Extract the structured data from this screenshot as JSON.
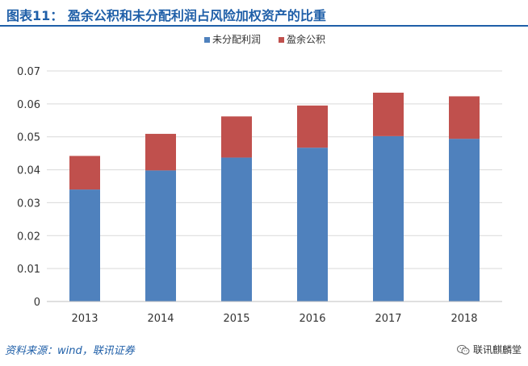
{
  "header": {
    "title": "图表11： 盈余公积和未分配利润占风险加权资产的比重"
  },
  "footer": {
    "source": "资料来源：wind，联讯证券",
    "watermark": "联讯麒麟堂",
    "watermark_icon": "wechat-icon"
  },
  "chart_data": {
    "type": "bar",
    "stacked": true,
    "title": "",
    "xlabel": "",
    "ylabel": "",
    "categories": [
      "2013",
      "2014",
      "2015",
      "2016",
      "2017",
      "2018"
    ],
    "series": [
      {
        "name": "未分配利润",
        "color": "#4f81bd",
        "values": [
          0.034,
          0.0398,
          0.0437,
          0.0467,
          0.0502,
          0.0494
        ]
      },
      {
        "name": "盈余公积",
        "color": "#c0504d",
        "values": [
          0.0102,
          0.0111,
          0.0125,
          0.0128,
          0.0132,
          0.0129
        ]
      }
    ],
    "ylim": [
      0,
      0.07
    ],
    "yticks": [
      "0",
      "0.01",
      "0.02",
      "0.03",
      "0.04",
      "0.05",
      "0.06",
      "0.07"
    ],
    "grid": true,
    "legend": "top-center"
  }
}
